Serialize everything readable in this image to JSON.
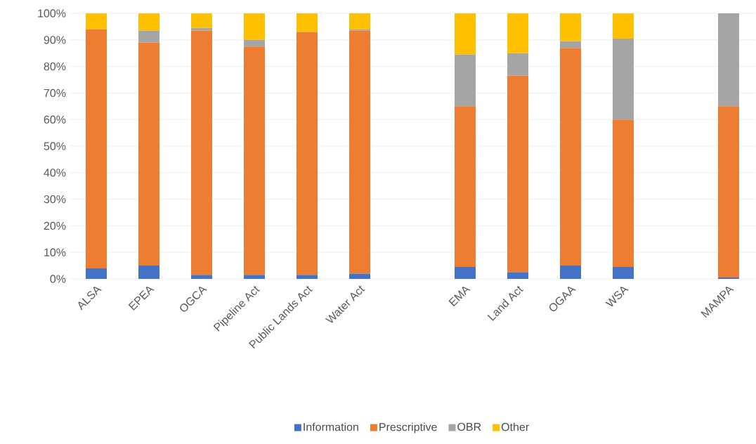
{
  "chart_data": {
    "type": "bar",
    "stacked": true,
    "categories": [
      "ALSA",
      "EPEA",
      "OGCA",
      "Pipeline Act",
      "Public Lands Act",
      "Water Act",
      null,
      "EMA",
      "Land Act",
      "OGAA",
      "WSA",
      null,
      "MAMPA"
    ],
    "series": [
      {
        "name": "Information",
        "color": "#4472c4",
        "values": [
          4,
          5,
          1.5,
          1.5,
          1.5,
          2,
          null,
          4.5,
          2.5,
          5,
          4.5,
          null,
          0.5
        ]
      },
      {
        "name": "Prescriptive",
        "color": "#ed7d31",
        "values": [
          90,
          84,
          92,
          86,
          91.5,
          91.5,
          null,
          60.5,
          74,
          82,
          55.5,
          null,
          64.5
        ]
      },
      {
        "name": "OBR",
        "color": "#a5a5a5",
        "values": [
          0,
          4.5,
          1,
          2.5,
          0,
          0.5,
          null,
          19.5,
          8.5,
          2.5,
          30.5,
          null,
          35
        ]
      },
      {
        "name": "Other",
        "color": "#ffc000",
        "values": [
          6,
          6.5,
          5.5,
          10,
          7,
          6,
          null,
          15.5,
          15,
          10.5,
          9.5,
          null,
          0
        ]
      }
    ],
    "ylim": [
      0,
      100
    ],
    "yticks": [
      {
        "value": 0,
        "label": "0%"
      },
      {
        "value": 10,
        "label": "10%"
      },
      {
        "value": 20,
        "label": "20%"
      },
      {
        "value": 30,
        "label": "30%"
      },
      {
        "value": 40,
        "label": "40%"
      },
      {
        "value": 50,
        "label": "50%"
      },
      {
        "value": 60,
        "label": "60%"
      },
      {
        "value": 70,
        "label": "70%"
      },
      {
        "value": 80,
        "label": "80%"
      },
      {
        "value": 90,
        "label": "90%"
      },
      {
        "value": 100,
        "label": "100%"
      }
    ],
    "grid": "y",
    "legend": "bottom"
  }
}
